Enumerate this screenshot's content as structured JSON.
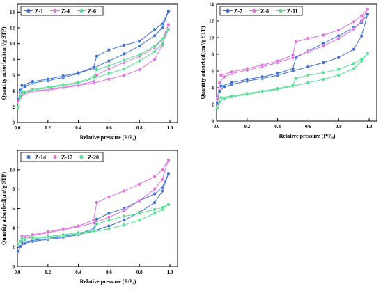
{
  "figure": {
    "ylabel": "Quantity adsorbed(cm³/g STP)",
    "xlabel": "Relative pressure (P/P₀)"
  },
  "chart_data": [
    {
      "type": "line",
      "xlabel": "Relative pressure (P/P₀)",
      "ylabel": "Quantity adsorbed(cm³/g STP)",
      "xlim": [
        0.0,
        1.05
      ],
      "ylim": [
        0,
        15
      ],
      "xticks": [
        "0.0",
        "0.2",
        "0.4",
        "0.6",
        "0.8",
        "1.0"
      ],
      "yticks": [
        "0",
        "2",
        "4",
        "6",
        "8",
        "10",
        "12",
        "14"
      ],
      "legend_position": "top-left",
      "grid": false,
      "series": [
        {
          "name": "Z-1",
          "color": "#3a6fd8",
          "adsorption": [
            [
              0.005,
              2.9
            ],
            [
              0.02,
              4.1
            ],
            [
              0.05,
              4.6
            ],
            [
              0.1,
              5.0
            ],
            [
              0.2,
              5.3
            ],
            [
              0.3,
              5.7
            ],
            [
              0.4,
              6.2
            ],
            [
              0.5,
              6.9
            ],
            [
              0.6,
              7.8
            ],
            [
              0.7,
              8.7
            ],
            [
              0.8,
              9.7
            ],
            [
              0.9,
              11.0
            ],
            [
              0.95,
              12.0
            ],
            [
              0.99,
              14.1
            ]
          ],
          "desorption": [
            [
              0.99,
              14.1
            ],
            [
              0.95,
              12.5
            ],
            [
              0.9,
              11.8
            ],
            [
              0.8,
              10.3
            ],
            [
              0.7,
              9.8
            ],
            [
              0.6,
              9.2
            ],
            [
              0.52,
              8.4
            ],
            [
              0.5,
              7.0
            ],
            [
              0.4,
              6.3
            ],
            [
              0.3,
              5.9
            ],
            [
              0.2,
              5.5
            ],
            [
              0.1,
              5.2
            ],
            [
              0.03,
              4.7
            ]
          ]
        },
        {
          "name": "Z-4",
          "color": "#e070e0",
          "adsorption": [
            [
              0.005,
              2.7
            ],
            [
              0.02,
              3.2
            ],
            [
              0.05,
              3.6
            ],
            [
              0.1,
              3.9
            ],
            [
              0.2,
              4.1
            ],
            [
              0.3,
              4.4
            ],
            [
              0.4,
              4.7
            ],
            [
              0.5,
              5.0
            ],
            [
              0.6,
              5.5
            ],
            [
              0.7,
              6.0
            ],
            [
              0.8,
              6.7
            ],
            [
              0.9,
              8.0
            ],
            [
              0.95,
              9.8
            ],
            [
              0.99,
              12.4
            ]
          ],
          "desorption": [
            [
              0.99,
              12.4
            ],
            [
              0.95,
              10.5
            ],
            [
              0.9,
              9.5
            ],
            [
              0.8,
              8.4
            ],
            [
              0.7,
              7.6
            ],
            [
              0.6,
              6.8
            ],
            [
              0.52,
              6.0
            ],
            [
              0.5,
              5.2
            ],
            [
              0.4,
              4.8
            ],
            [
              0.3,
              4.5
            ],
            [
              0.2,
              4.2
            ],
            [
              0.1,
              4.0
            ],
            [
              0.03,
              3.7
            ]
          ]
        },
        {
          "name": "Z-6",
          "color": "#50e090",
          "adsorption": [
            [
              0.005,
              1.9
            ],
            [
              0.02,
              3.4
            ],
            [
              0.05,
              3.8
            ],
            [
              0.1,
              4.1
            ],
            [
              0.2,
              4.4
            ],
            [
              0.3,
              4.7
            ],
            [
              0.4,
              5.0
            ],
            [
              0.5,
              5.6
            ],
            [
              0.6,
              6.2
            ],
            [
              0.7,
              6.8
            ],
            [
              0.8,
              7.8
            ],
            [
              0.9,
              9.0
            ],
            [
              0.95,
              10.0
            ],
            [
              0.99,
              11.8
            ]
          ],
          "desorption": [
            [
              0.99,
              11.8
            ],
            [
              0.95,
              10.6
            ],
            [
              0.9,
              9.7
            ],
            [
              0.8,
              8.6
            ],
            [
              0.7,
              7.9
            ],
            [
              0.6,
              7.2
            ],
            [
              0.52,
              6.7
            ],
            [
              0.5,
              5.8
            ],
            [
              0.4,
              5.1
            ],
            [
              0.3,
              4.8
            ],
            [
              0.2,
              4.5
            ],
            [
              0.1,
              4.2
            ],
            [
              0.03,
              3.9
            ]
          ]
        }
      ]
    },
    {
      "type": "line",
      "xlabel": "Relative pressure (P/P₀)",
      "ylabel": "Quantity adsorbed(cm³/g STP)",
      "xlim": [
        0.0,
        1.05
      ],
      "ylim": [
        0,
        14
      ],
      "xticks": [
        "0.0",
        "0.2",
        "0.4",
        "0.6",
        "0.8",
        "1.0"
      ],
      "yticks": [
        "0",
        "2",
        "4",
        "6",
        "8",
        "10",
        "12",
        "14"
      ],
      "legend_position": "top-left",
      "grid": false,
      "series": [
        {
          "name": "Z-7",
          "color": "#3a6fd8",
          "adsorption": [
            [
              0.005,
              2.2
            ],
            [
              0.02,
              3.6
            ],
            [
              0.05,
              4.1
            ],
            [
              0.1,
              4.4
            ],
            [
              0.2,
              4.8
            ],
            [
              0.3,
              5.1
            ],
            [
              0.4,
              5.5
            ],
            [
              0.5,
              6.0
            ],
            [
              0.6,
              6.5
            ],
            [
              0.7,
              7.0
            ],
            [
              0.8,
              7.6
            ],
            [
              0.9,
              8.6
            ],
            [
              0.95,
              10.2
            ],
            [
              0.99,
              12.8
            ]
          ],
          "desorption": [
            [
              0.99,
              12.8
            ],
            [
              0.95,
              11.8
            ],
            [
              0.9,
              11.2
            ],
            [
              0.8,
              10.2
            ],
            [
              0.7,
              9.3
            ],
            [
              0.6,
              8.4
            ],
            [
              0.52,
              7.6
            ],
            [
              0.5,
              6.3
            ],
            [
              0.4,
              5.7
            ],
            [
              0.3,
              5.3
            ],
            [
              0.2,
              5.0
            ],
            [
              0.1,
              4.6
            ],
            [
              0.03,
              4.2
            ]
          ]
        },
        {
          "name": "Z-8",
          "color": "#e070e0",
          "adsorption": [
            [
              0.005,
              2.6
            ],
            [
              0.02,
              4.6
            ],
            [
              0.05,
              5.3
            ],
            [
              0.1,
              5.7
            ],
            [
              0.2,
              6.1
            ],
            [
              0.3,
              6.5
            ],
            [
              0.4,
              7.0
            ],
            [
              0.5,
              7.6
            ],
            [
              0.6,
              8.3
            ],
            [
              0.7,
              9.0
            ],
            [
              0.8,
              9.9
            ],
            [
              0.9,
              11.0
            ],
            [
              0.95,
              12.0
            ],
            [
              0.99,
              13.4
            ]
          ],
          "desorption": [
            [
              0.99,
              13.4
            ],
            [
              0.95,
              12.6
            ],
            [
              0.9,
              11.9
            ],
            [
              0.8,
              10.9
            ],
            [
              0.7,
              10.3
            ],
            [
              0.6,
              9.9
            ],
            [
              0.52,
              9.5
            ],
            [
              0.5,
              7.9
            ],
            [
              0.4,
              7.2
            ],
            [
              0.3,
              6.7
            ],
            [
              0.2,
              6.3
            ],
            [
              0.1,
              5.9
            ],
            [
              0.03,
              5.5
            ]
          ]
        },
        {
          "name": "Z-11",
          "color": "#50e090",
          "adsorption": [
            [
              0.005,
              1.6
            ],
            [
              0.02,
              2.3
            ],
            [
              0.05,
              2.7
            ],
            [
              0.1,
              2.9
            ],
            [
              0.2,
              3.2
            ],
            [
              0.3,
              3.5
            ],
            [
              0.4,
              3.8
            ],
            [
              0.5,
              4.2
            ],
            [
              0.6,
              4.6
            ],
            [
              0.7,
              5.0
            ],
            [
              0.8,
              5.5
            ],
            [
              0.9,
              6.3
            ],
            [
              0.95,
              7.2
            ],
            [
              0.99,
              8.1
            ]
          ],
          "desorption": [
            [
              0.99,
              8.1
            ],
            [
              0.95,
              7.4
            ],
            [
              0.9,
              6.9
            ],
            [
              0.8,
              6.2
            ],
            [
              0.7,
              5.8
            ],
            [
              0.6,
              5.5
            ],
            [
              0.52,
              5.1
            ],
            [
              0.5,
              4.3
            ],
            [
              0.4,
              3.9
            ],
            [
              0.3,
              3.6
            ],
            [
              0.2,
              3.3
            ],
            [
              0.1,
              3.0
            ],
            [
              0.03,
              2.8
            ]
          ]
        }
      ]
    },
    {
      "type": "line",
      "xlabel": "Relative pressure (P/P₀)",
      "ylabel": "Quantity adsorbed(cm³/g STP)",
      "xlim": [
        0.0,
        1.05
      ],
      "ylim": [
        0,
        12
      ],
      "xticks": [
        "0.0",
        "0.2",
        "0.4",
        "0.6",
        "0.8",
        "1.0"
      ],
      "yticks": [
        "0",
        "2",
        "4",
        "6",
        "8",
        "10"
      ],
      "legend_position": "top-left",
      "grid": false,
      "series": [
        {
          "name": "Z-14",
          "color": "#3a6fd8",
          "adsorption": [
            [
              0.005,
              1.6
            ],
            [
              0.02,
              2.1
            ],
            [
              0.05,
              2.4
            ],
            [
              0.1,
              2.6
            ],
            [
              0.2,
              2.8
            ],
            [
              0.3,
              3.0
            ],
            [
              0.4,
              3.3
            ],
            [
              0.5,
              3.7
            ],
            [
              0.6,
              4.2
            ],
            [
              0.7,
              4.8
            ],
            [
              0.8,
              5.6
            ],
            [
              0.9,
              6.6
            ],
            [
              0.95,
              7.8
            ],
            [
              0.99,
              9.6
            ]
          ],
          "desorption": [
            [
              0.99,
              9.6
            ],
            [
              0.95,
              8.2
            ],
            [
              0.9,
              7.5
            ],
            [
              0.8,
              6.8
            ],
            [
              0.7,
              6.0
            ],
            [
              0.6,
              5.5
            ],
            [
              0.52,
              4.9
            ],
            [
              0.5,
              3.9
            ],
            [
              0.4,
              3.4
            ],
            [
              0.3,
              3.1
            ],
            [
              0.2,
              2.9
            ],
            [
              0.1,
              2.7
            ],
            [
              0.03,
              2.5
            ]
          ]
        },
        {
          "name": "Z-17",
          "color": "#e070e0",
          "adsorption": [
            [
              0.005,
              2.2
            ],
            [
              0.02,
              2.6
            ],
            [
              0.05,
              3.0
            ],
            [
              0.1,
              3.2
            ],
            [
              0.2,
              3.5
            ],
            [
              0.3,
              3.8
            ],
            [
              0.4,
              4.1
            ],
            [
              0.5,
              4.5
            ],
            [
              0.6,
              5.1
            ],
            [
              0.7,
              5.8
            ],
            [
              0.8,
              6.8
            ],
            [
              0.9,
              8.0
            ],
            [
              0.95,
              9.0
            ],
            [
              0.99,
              11.0
            ]
          ],
          "desorption": [
            [
              0.99,
              11.0
            ],
            [
              0.95,
              10.0
            ],
            [
              0.9,
              9.3
            ],
            [
              0.8,
              8.5
            ],
            [
              0.7,
              7.8
            ],
            [
              0.6,
              7.2
            ],
            [
              0.52,
              6.6
            ],
            [
              0.5,
              4.8
            ],
            [
              0.4,
              4.2
            ],
            [
              0.3,
              3.9
            ],
            [
              0.2,
              3.6
            ],
            [
              0.1,
              3.3
            ],
            [
              0.03,
              3.1
            ]
          ]
        },
        {
          "name": "Z-20",
          "color": "#50e090",
          "adsorption": [
            [
              0.005,
              2.3
            ],
            [
              0.02,
              2.6
            ],
            [
              0.05,
              2.8
            ],
            [
              0.1,
              2.9
            ],
            [
              0.2,
              3.0
            ],
            [
              0.3,
              3.2
            ],
            [
              0.4,
              3.4
            ],
            [
              0.5,
              3.6
            ],
            [
              0.6,
              3.9
            ],
            [
              0.7,
              4.3
            ],
            [
              0.8,
              4.8
            ],
            [
              0.9,
              5.5
            ],
            [
              0.95,
              5.9
            ],
            [
              0.99,
              6.4
            ]
          ],
          "desorption": [
            [
              0.99,
              6.4
            ],
            [
              0.95,
              6.1
            ],
            [
              0.9,
              5.9
            ],
            [
              0.8,
              5.5
            ],
            [
              0.7,
              5.2
            ],
            [
              0.6,
              4.8
            ],
            [
              0.52,
              4.4
            ],
            [
              0.5,
              3.7
            ],
            [
              0.4,
              3.5
            ],
            [
              0.3,
              3.3
            ],
            [
              0.2,
              3.1
            ],
            [
              0.1,
              3.0
            ],
            [
              0.03,
              2.9
            ]
          ]
        }
      ]
    }
  ]
}
